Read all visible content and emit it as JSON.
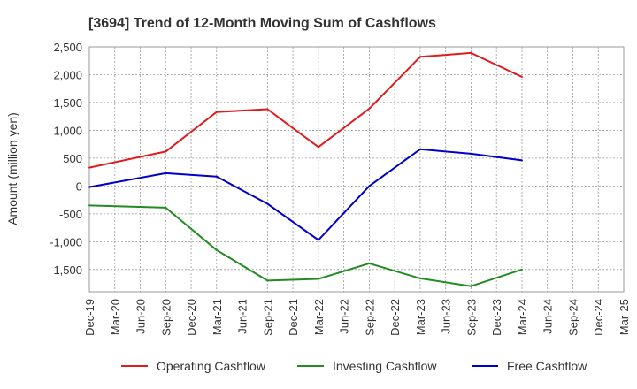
{
  "chart_data": {
    "type": "line",
    "title": "[3694]  Trend of 12-Month Moving Sum of Cashflows",
    "xlabel": "",
    "ylabel": "Amount (million yen)",
    "categories": [
      "Dec-19",
      "Mar-20",
      "Jun-20",
      "Sep-20",
      "Dec-20",
      "Mar-21",
      "Jun-21",
      "Sep-21",
      "Dec-21",
      "Mar-22",
      "Jun-22",
      "Sep-22",
      "Dec-22",
      "Mar-23",
      "Jun-23",
      "Sep-23",
      "Dec-23",
      "Mar-24",
      "Jun-24",
      "Sep-24",
      "Dec-24",
      "Mar-25"
    ],
    "y_ticks": [
      -1500,
      -1000,
      -500,
      0,
      500,
      1000,
      1500,
      2000,
      2500
    ],
    "y_tick_labels": [
      "-1,500",
      "-1,000",
      "-500",
      "0",
      "500",
      "1,000",
      "1,500",
      "2,000",
      "2,500"
    ],
    "ylim": [
      -1900,
      2500
    ],
    "grid": true,
    "legend_position": "bottom",
    "series": [
      {
        "name": "Operating Cashflow",
        "color": "#e31a1c",
        "points": [
          {
            "x": "Dec-19",
            "y": 330
          },
          {
            "x": "Sep-20",
            "y": 620
          },
          {
            "x": "Mar-21",
            "y": 1330
          },
          {
            "x": "Sep-21",
            "y": 1380
          },
          {
            "x": "Mar-22",
            "y": 700
          },
          {
            "x": "Sep-22",
            "y": 1390
          },
          {
            "x": "Mar-23",
            "y": 2320
          },
          {
            "x": "Sep-23",
            "y": 2390
          },
          {
            "x": "Mar-24",
            "y": 1960
          }
        ]
      },
      {
        "name": "Investing Cashflow",
        "color": "#228b22",
        "points": [
          {
            "x": "Dec-19",
            "y": -350
          },
          {
            "x": "Sep-20",
            "y": -390
          },
          {
            "x": "Mar-21",
            "y": -1150
          },
          {
            "x": "Sep-21",
            "y": -1700
          },
          {
            "x": "Mar-22",
            "y": -1670
          },
          {
            "x": "Sep-22",
            "y": -1390
          },
          {
            "x": "Mar-23",
            "y": -1660
          },
          {
            "x": "Sep-23",
            "y": -1800
          },
          {
            "x": "Mar-24",
            "y": -1500
          }
        ]
      },
      {
        "name": "Free Cashflow",
        "color": "#0000cc",
        "points": [
          {
            "x": "Dec-19",
            "y": -20
          },
          {
            "x": "Sep-20",
            "y": 230
          },
          {
            "x": "Mar-21",
            "y": 170
          },
          {
            "x": "Sep-21",
            "y": -320
          },
          {
            "x": "Mar-22",
            "y": -970
          },
          {
            "x": "Sep-22",
            "y": 0
          },
          {
            "x": "Mar-23",
            "y": 660
          },
          {
            "x": "Sep-23",
            "y": 580
          },
          {
            "x": "Mar-24",
            "y": 460
          }
        ]
      }
    ]
  }
}
